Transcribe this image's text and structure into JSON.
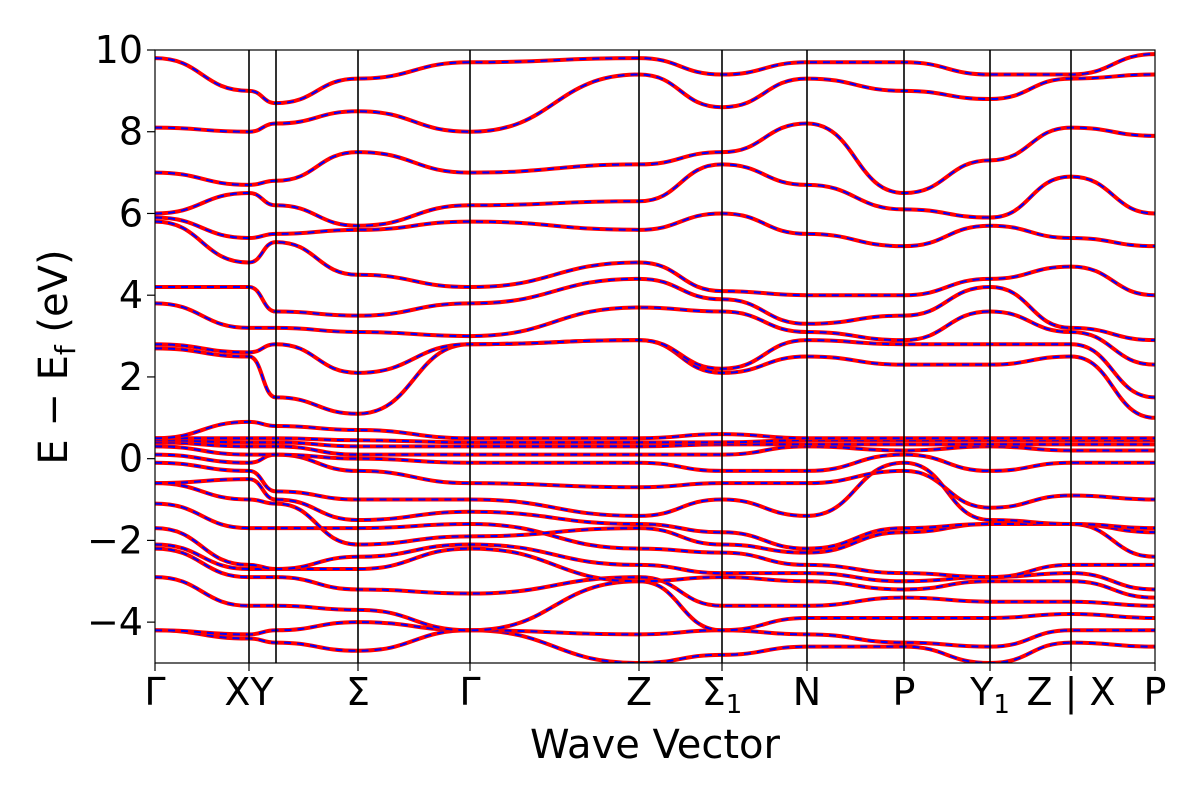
{
  "chart_data": {
    "type": "line",
    "title": "",
    "xlabel": "Wave Vector",
    "ylabel": "E − E_f (eV)",
    "ylabel_main": "E − E",
    "ylabel_sub": "f",
    "ylabel_tail": " (eV)",
    "ylim": [
      -5,
      10
    ],
    "xlim": [
      0,
      1
    ],
    "grid": false,
    "legend": "none",
    "yticks": [
      -4,
      -2,
      0,
      2,
      4,
      6,
      8,
      10
    ],
    "ytick_labels": [
      "−4",
      "−2",
      "0",
      "2",
      "4",
      "6",
      "8",
      "10"
    ],
    "kpoints": [
      {
        "x": 0.0,
        "label": "Γ",
        "sub": ""
      },
      {
        "x": 0.094,
        "label": "XY",
        "sub": ""
      },
      {
        "x": 0.203,
        "label": "Σ",
        "sub": ""
      },
      {
        "x": 0.315,
        "label": "Γ",
        "sub": ""
      },
      {
        "x": 0.484,
        "label": "Z",
        "sub": ""
      },
      {
        "x": 0.567,
        "label": "Σ",
        "sub": "1"
      },
      {
        "x": 0.652,
        "label": "N",
        "sub": ""
      },
      {
        "x": 0.749,
        "label": "P",
        "sub": ""
      },
      {
        "x": 0.835,
        "label": "Y",
        "sub": "1"
      },
      {
        "x": 0.916,
        "label": "Z | X",
        "sub": ""
      },
      {
        "x": 1.0,
        "label": "P",
        "sub": ""
      }
    ],
    "kpoint_lines": [
      0.094,
      0.121,
      0.203,
      0.315,
      0.484,
      0.567,
      0.652,
      0.749,
      0.835,
      0.916
    ],
    "series_styles": [
      {
        "color": "#ff0000",
        "style": "solid"
      },
      {
        "color": "#0000ff",
        "style": "dashed"
      }
    ],
    "bands_at_kpoints": {
      "x": [
        0.0,
        0.094,
        0.121,
        0.203,
        0.315,
        0.484,
        0.567,
        0.652,
        0.749,
        0.835,
        0.916,
        1.0
      ],
      "bands": [
        [
          -4.2,
          -4.4,
          -4.5,
          -4.7,
          -4.2,
          -5.0,
          -4.8,
          -4.6,
          -4.6,
          -5.0,
          -4.5,
          -4.6
        ],
        [
          -4.2,
          -4.3,
          -4.2,
          -4.0,
          -4.2,
          -4.3,
          -4.2,
          -4.3,
          -4.5,
          -4.6,
          -4.2,
          -4.2
        ],
        [
          -2.9,
          -3.6,
          -3.6,
          -3.7,
          -4.2,
          -3.0,
          -4.2,
          -3.9,
          -3.9,
          -3.9,
          -3.8,
          -3.9
        ],
        [
          -2.2,
          -2.9,
          -2.9,
          -3.2,
          -3.3,
          -2.9,
          -3.6,
          -3.6,
          -3.4,
          -3.5,
          -3.5,
          -3.6
        ],
        [
          -2.1,
          -2.7,
          -2.7,
          -2.7,
          -2.2,
          -3.0,
          -2.9,
          -3.0,
          -3.2,
          -3.0,
          -3.0,
          -3.4
        ],
        [
          -1.7,
          -2.6,
          -2.7,
          -2.4,
          -2.1,
          -2.6,
          -2.8,
          -2.8,
          -3.0,
          -2.9,
          -2.8,
          -3.2
        ],
        [
          -1.1,
          -1.7,
          -1.7,
          -1.7,
          -1.6,
          -2.2,
          -2.3,
          -2.6,
          -2.8,
          -2.9,
          -2.6,
          -2.6
        ],
        [
          -0.6,
          -1.0,
          -1.1,
          -2.1,
          -1.9,
          -1.7,
          -2.1,
          -2.3,
          -1.8,
          -1.6,
          -1.6,
          -2.4
        ],
        [
          -0.6,
          -0.5,
          -1.0,
          -1.5,
          -1.3,
          -1.6,
          -1.8,
          -2.2,
          -1.7,
          -1.6,
          -1.6,
          -1.8
        ],
        [
          -0.1,
          -0.3,
          -0.8,
          -1.0,
          -1.0,
          -1.4,
          -1.0,
          -1.4,
          -0.1,
          -1.5,
          -1.6,
          -1.7
        ],
        [
          0.1,
          -0.1,
          0.1,
          -0.3,
          -0.6,
          -0.7,
          -0.6,
          -0.6,
          -0.3,
          -1.2,
          -0.9,
          -1.0
        ],
        [
          0.3,
          0.1,
          0.1,
          0.0,
          -0.1,
          -0.1,
          -0.3,
          -0.3,
          0.1,
          -0.3,
          -0.1,
          -0.1
        ],
        [
          0.4,
          0.3,
          0.3,
          0.1,
          0.1,
          0.1,
          0.1,
          0.3,
          0.2,
          0.3,
          0.2,
          0.2
        ],
        [
          0.45,
          0.4,
          0.4,
          0.3,
          0.3,
          0.3,
          0.35,
          0.35,
          0.35,
          0.35,
          0.35,
          0.35
        ],
        [
          0.5,
          0.5,
          0.5,
          0.45,
          0.4,
          0.4,
          0.4,
          0.45,
          0.45,
          0.45,
          0.45,
          0.45
        ],
        [
          0.5,
          0.9,
          0.8,
          0.7,
          0.5,
          0.5,
          0.6,
          0.5,
          0.5,
          0.5,
          0.5,
          0.5
        ],
        [
          2.7,
          2.5,
          1.5,
          1.1,
          2.8,
          2.9,
          2.1,
          2.5,
          2.3,
          2.3,
          2.5,
          1.0
        ],
        [
          2.8,
          2.6,
          2.8,
          2.1,
          2.8,
          2.9,
          2.2,
          2.9,
          2.8,
          2.8,
          2.8,
          1.5
        ],
        [
          3.8,
          3.2,
          3.2,
          3.1,
          3.0,
          3.7,
          3.6,
          3.1,
          2.9,
          3.6,
          3.1,
          2.3
        ],
        [
          4.2,
          4.2,
          3.6,
          3.5,
          3.8,
          4.4,
          3.9,
          3.3,
          3.5,
          4.2,
          3.2,
          2.9
        ],
        [
          5.8,
          4.8,
          5.3,
          4.5,
          4.2,
          4.8,
          4.1,
          4.0,
          4.0,
          4.4,
          4.7,
          4.0
        ],
        [
          5.9,
          5.4,
          5.5,
          5.6,
          5.8,
          5.6,
          6.0,
          5.5,
          5.2,
          5.7,
          5.4,
          5.2
        ],
        [
          6.0,
          6.5,
          6.2,
          5.7,
          6.2,
          6.3,
          7.2,
          6.7,
          6.1,
          5.9,
          6.9,
          6.0
        ],
        [
          7.0,
          6.7,
          6.8,
          7.5,
          7.0,
          7.2,
          7.5,
          8.2,
          6.5,
          7.3,
          8.1,
          7.9
        ],
        [
          8.1,
          8.0,
          8.2,
          8.5,
          8.0,
          9.4,
          8.6,
          9.3,
          9.0,
          8.8,
          9.3,
          9.4
        ],
        [
          9.8,
          9.0,
          8.7,
          9.3,
          9.7,
          9.8,
          9.4,
          9.7,
          9.7,
          9.4,
          9.4,
          9.9
        ]
      ]
    }
  }
}
